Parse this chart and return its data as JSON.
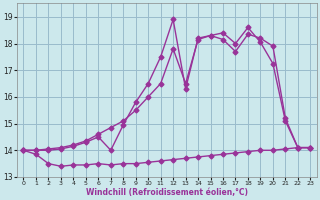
{
  "bg_color": "#cce8ec",
  "grid_color": "#99bbcc",
  "line_color": "#993399",
  "xlabel": "Windchill (Refroidissement éolien,°C)",
  "xlim": [
    -0.5,
    23.5
  ],
  "ylim": [
    13.0,
    19.5
  ],
  "yticks": [
    13,
    14,
    15,
    16,
    17,
    18,
    19
  ],
  "xticks": [
    0,
    1,
    2,
    3,
    4,
    5,
    6,
    7,
    8,
    9,
    10,
    11,
    12,
    13,
    14,
    15,
    16,
    17,
    18,
    19,
    20,
    21,
    22,
    23
  ],
  "curve_flat_x": [
    0,
    1,
    2,
    3,
    4,
    5,
    6,
    7,
    8,
    9,
    10,
    11,
    12,
    13,
    14,
    15,
    16,
    17,
    18,
    19,
    20,
    21,
    22,
    23
  ],
  "curve_flat_y": [
    14.0,
    13.85,
    13.5,
    13.4,
    13.45,
    13.45,
    13.5,
    13.45,
    13.5,
    13.5,
    13.55,
    13.6,
    13.65,
    13.7,
    13.75,
    13.8,
    13.85,
    13.9,
    13.95,
    14.0,
    14.0,
    14.05,
    14.1,
    14.1
  ],
  "curve_spiky_x": [
    0,
    1,
    2,
    3,
    4,
    5,
    6,
    7,
    8,
    9,
    10,
    11,
    12,
    13,
    14,
    15,
    16,
    17,
    18,
    19,
    20,
    21,
    22,
    23
  ],
  "curve_spiky_y": [
    14.0,
    14.0,
    14.0,
    14.05,
    14.15,
    14.3,
    14.5,
    14.0,
    14.95,
    15.8,
    16.5,
    17.5,
    18.9,
    16.3,
    18.2,
    18.3,
    18.4,
    18.0,
    18.6,
    18.05,
    17.25,
    15.1,
    14.1,
    14.1
  ],
  "curve_smooth_x": [
    0,
    1,
    2,
    3,
    4,
    5,
    6,
    7,
    8,
    9,
    10,
    11,
    12,
    13,
    14,
    15,
    16,
    17,
    18,
    19,
    20,
    21,
    22,
    23
  ],
  "curve_smooth_y": [
    14.0,
    14.0,
    14.05,
    14.1,
    14.2,
    14.35,
    14.6,
    14.85,
    15.1,
    15.5,
    16.0,
    16.5,
    17.8,
    16.5,
    18.15,
    18.3,
    18.15,
    17.7,
    18.35,
    18.2,
    17.9,
    15.2,
    14.1,
    14.1
  ]
}
